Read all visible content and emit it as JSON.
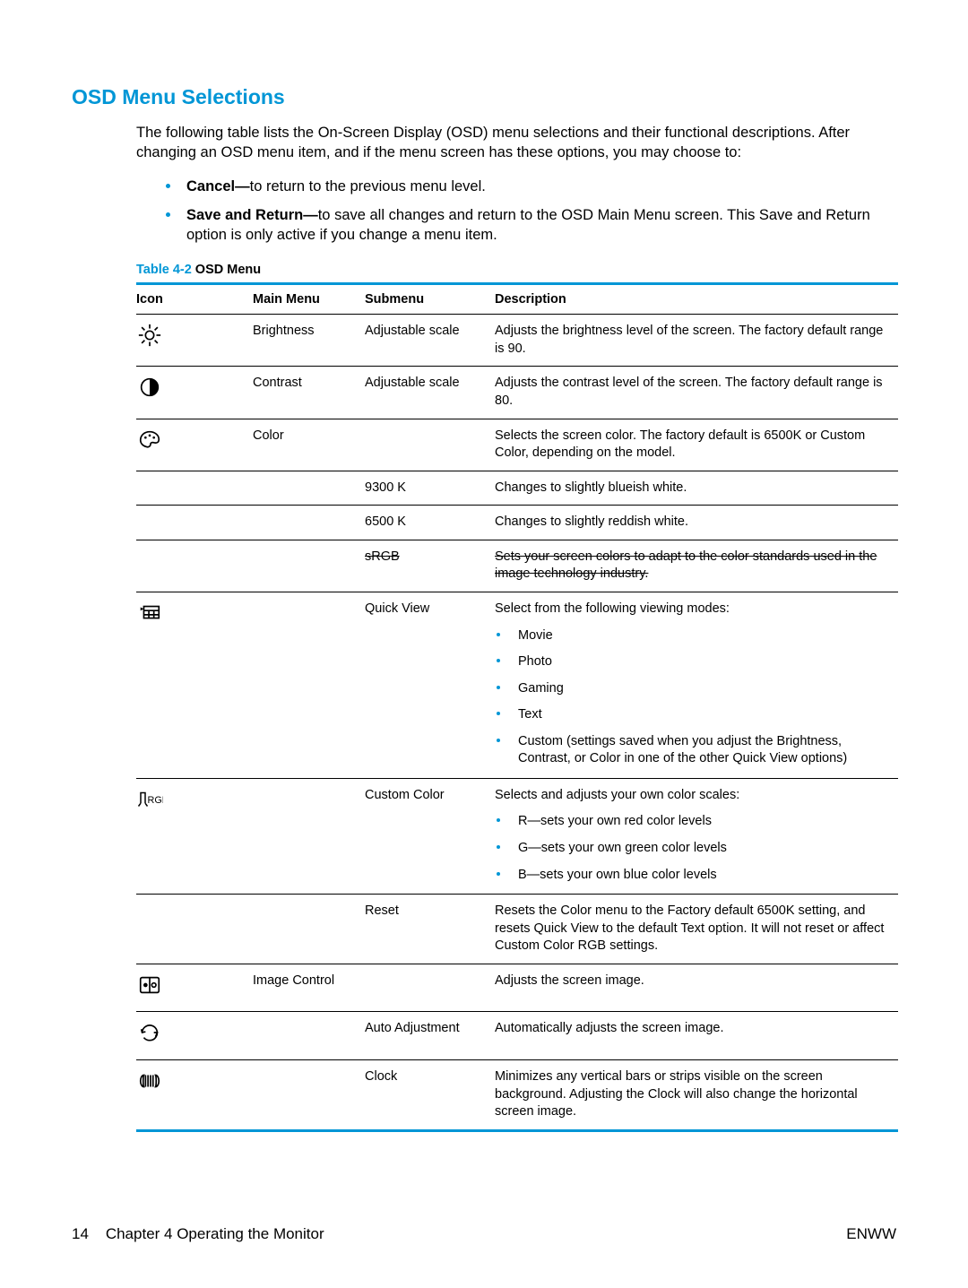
{
  "heading": "OSD Menu Selections",
  "intro": "The following table lists the On-Screen Display (OSD) menu selections and their functional descriptions. After changing an OSD menu item, and if the menu screen has these options, you may choose to:",
  "bullets": [
    {
      "bold": "Cancel—",
      "rest": "to return to the previous menu level."
    },
    {
      "bold": "Save and Return—",
      "rest": "to save all changes and return to the OSD Main Menu screen. This Save and Return option is only active if you change a menu item."
    }
  ],
  "table_caption": {
    "blue": "Table 4-2",
    "black": " OSD Menu"
  },
  "table": {
    "headers": [
      "Icon",
      "Main Menu",
      "Submenu",
      "Description"
    ],
    "rows": [
      {
        "icon": "brightness",
        "main": "Brightness",
        "sub": "Adjustable scale",
        "desc": "Adjusts the brightness level of the screen. The factory default range is 90."
      },
      {
        "icon": "contrast",
        "main": "Contrast",
        "sub": "Adjustable scale",
        "desc": "Adjusts the contrast level of the screen. The factory default range is 80."
      },
      {
        "icon": "color",
        "main": "Color",
        "sub": "",
        "desc": "Selects the screen color. The factory default is 6500K or Custom Color, depending on the model."
      },
      {
        "icon": "",
        "main": "",
        "sub": "9300 K",
        "desc": "Changes to slightly blueish white."
      },
      {
        "icon": "",
        "main": "",
        "sub": "6500 K",
        "desc": "Changes to slightly reddish white."
      },
      {
        "icon": "",
        "main": "",
        "sub": "sRGB",
        "desc": "Sets your screen colors to adapt to the color standards used in the image technology industry.",
        "strike": true
      },
      {
        "icon": "quickview",
        "main": "",
        "sub": "Quick View",
        "desc": "Select from the following viewing modes:",
        "subbullets": [
          "Movie",
          "Photo",
          "Gaming",
          "Text",
          "Custom (settings saved when you adjust the Brightness, Contrast, or Color in one of the other Quick View options)"
        ]
      },
      {
        "icon": "rgb",
        "main": "",
        "sub": "Custom Color",
        "desc": "Selects and adjusts your own color scales:",
        "subbullets": [
          "R—sets your own red color levels",
          "G—sets your own green color levels",
          "B—sets your own blue color levels"
        ]
      },
      {
        "icon": "",
        "main": "",
        "sub": "Reset",
        "desc": "Resets the Color menu to the Factory default 6500K setting, and resets Quick View to the default Text option. It will not reset or affect Custom Color RGB settings."
      },
      {
        "icon": "imagectrl",
        "main": "Image Control",
        "sub": "",
        "desc": "Adjusts the screen image."
      },
      {
        "icon": "auto",
        "main": "",
        "sub": "Auto Adjustment",
        "desc": "Automatically adjusts the screen image."
      },
      {
        "icon": "clock",
        "main": "",
        "sub": "Clock",
        "desc": "Minimizes any vertical bars or strips visible on the screen background. Adjusting the Clock will also change the horizontal screen image."
      }
    ]
  },
  "footer": {
    "left_page": "14",
    "left_text": "Chapter 4   Operating the Monitor",
    "right": "ENWW"
  }
}
